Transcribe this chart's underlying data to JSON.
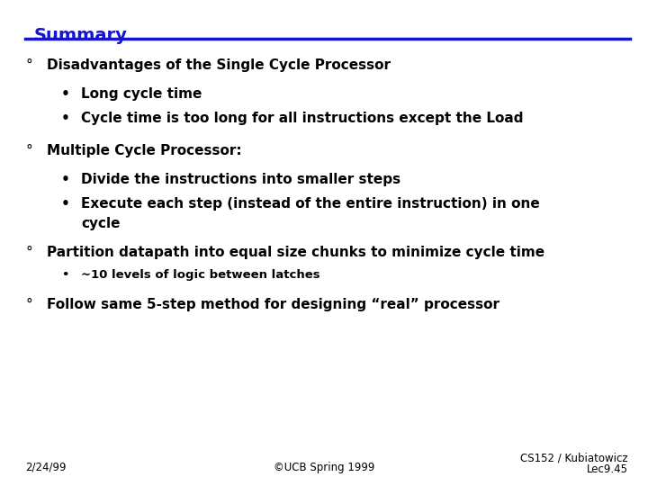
{
  "title": "Summary",
  "title_color": "#1515d0",
  "title_underline_color": "#1515d0",
  "background_color": "#ffffff",
  "text_color": "#000000",
  "bullet1_main": "Disadvantages of the Single Cycle Processor",
  "bullet1_subs": [
    "Long cycle time",
    "Cycle time is too long for all instructions except the Load"
  ],
  "bullet2_main": "Multiple Cycle Processor:",
  "bullet2_sub1": "Divide the instructions into smaller steps",
  "bullet2_sub2a": "Execute each step (instead of the entire instruction) in one",
  "bullet2_sub2b": "cycle",
  "bullet3_main": "Partition datapath into equal size chunks to minimize cycle time",
  "bullet3_sub": "~10 levels of logic between latches",
  "bullet4_main": "Follow same 5-step method for designing “real” processor",
  "footer_left": "2/24/99",
  "footer_center": "©UCB Spring 1999",
  "footer_right_line1": "CS152 / Kubiatowicz",
  "footer_right_line2": "Lec9.45",
  "title_fontsize": 14,
  "main_fontsize": 11,
  "sub_fontsize": 11,
  "sub3_fontsize": 9.5,
  "footer_fontsize": 8.5
}
